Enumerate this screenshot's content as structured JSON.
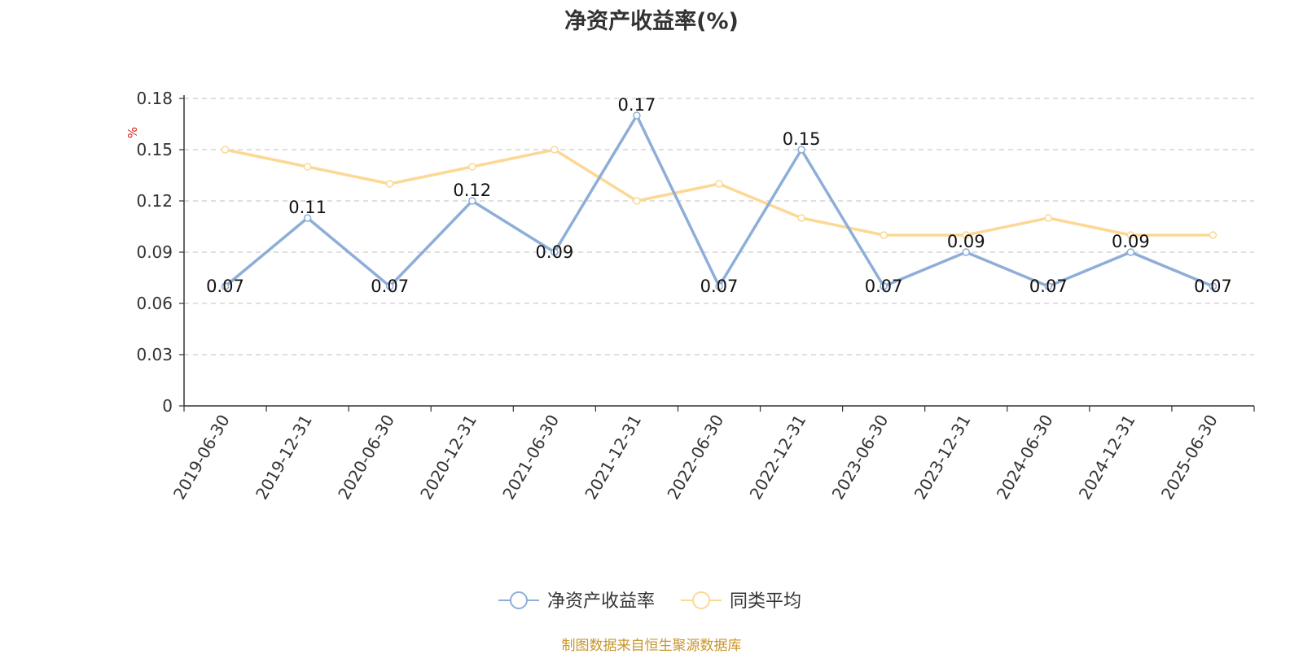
{
  "source_note": "制图数据来自恒生聚源数据库",
  "chart_data": {
    "type": "line",
    "title": "净资产收益率(%)",
    "ylabel": "%",
    "xlabel": "",
    "ylim": [
      0,
      0.18
    ],
    "yticks": [
      "0",
      "0.03",
      "0.06",
      "0.09",
      "0.12",
      "0.15",
      "0.18"
    ],
    "ytick_values": [
      0,
      0.03,
      0.06,
      0.09,
      0.12,
      0.15,
      0.18
    ],
    "grid": true,
    "legend_position": "bottom",
    "categories": [
      "2019-06-30",
      "2019-12-31",
      "2020-06-30",
      "2020-12-31",
      "2021-06-30",
      "2021-12-31",
      "2022-06-30",
      "2022-12-31",
      "2023-06-30",
      "2023-12-31",
      "2024-06-30",
      "2024-12-31",
      "2025-06-30"
    ],
    "series": [
      {
        "name": "净资产收益率",
        "color": "#8eaed8",
        "values": [
          0.07,
          0.11,
          0.07,
          0.12,
          0.09,
          0.17,
          0.07,
          0.15,
          0.07,
          0.09,
          0.07,
          0.09,
          0.07
        ],
        "labels": [
          "0.07",
          "0.11",
          "0.07",
          "0.12",
          "0.09",
          "0.17",
          "0.07",
          "0.15",
          "0.07",
          "0.09",
          "0.07",
          "0.09",
          "0.07"
        ]
      },
      {
        "name": "同类平均",
        "color": "#fcd894",
        "values": [
          0.15,
          0.14,
          0.13,
          0.14,
          0.15,
          0.12,
          0.13,
          0.11,
          0.1,
          0.1,
          0.11,
          0.1,
          0.1
        ]
      }
    ]
  }
}
